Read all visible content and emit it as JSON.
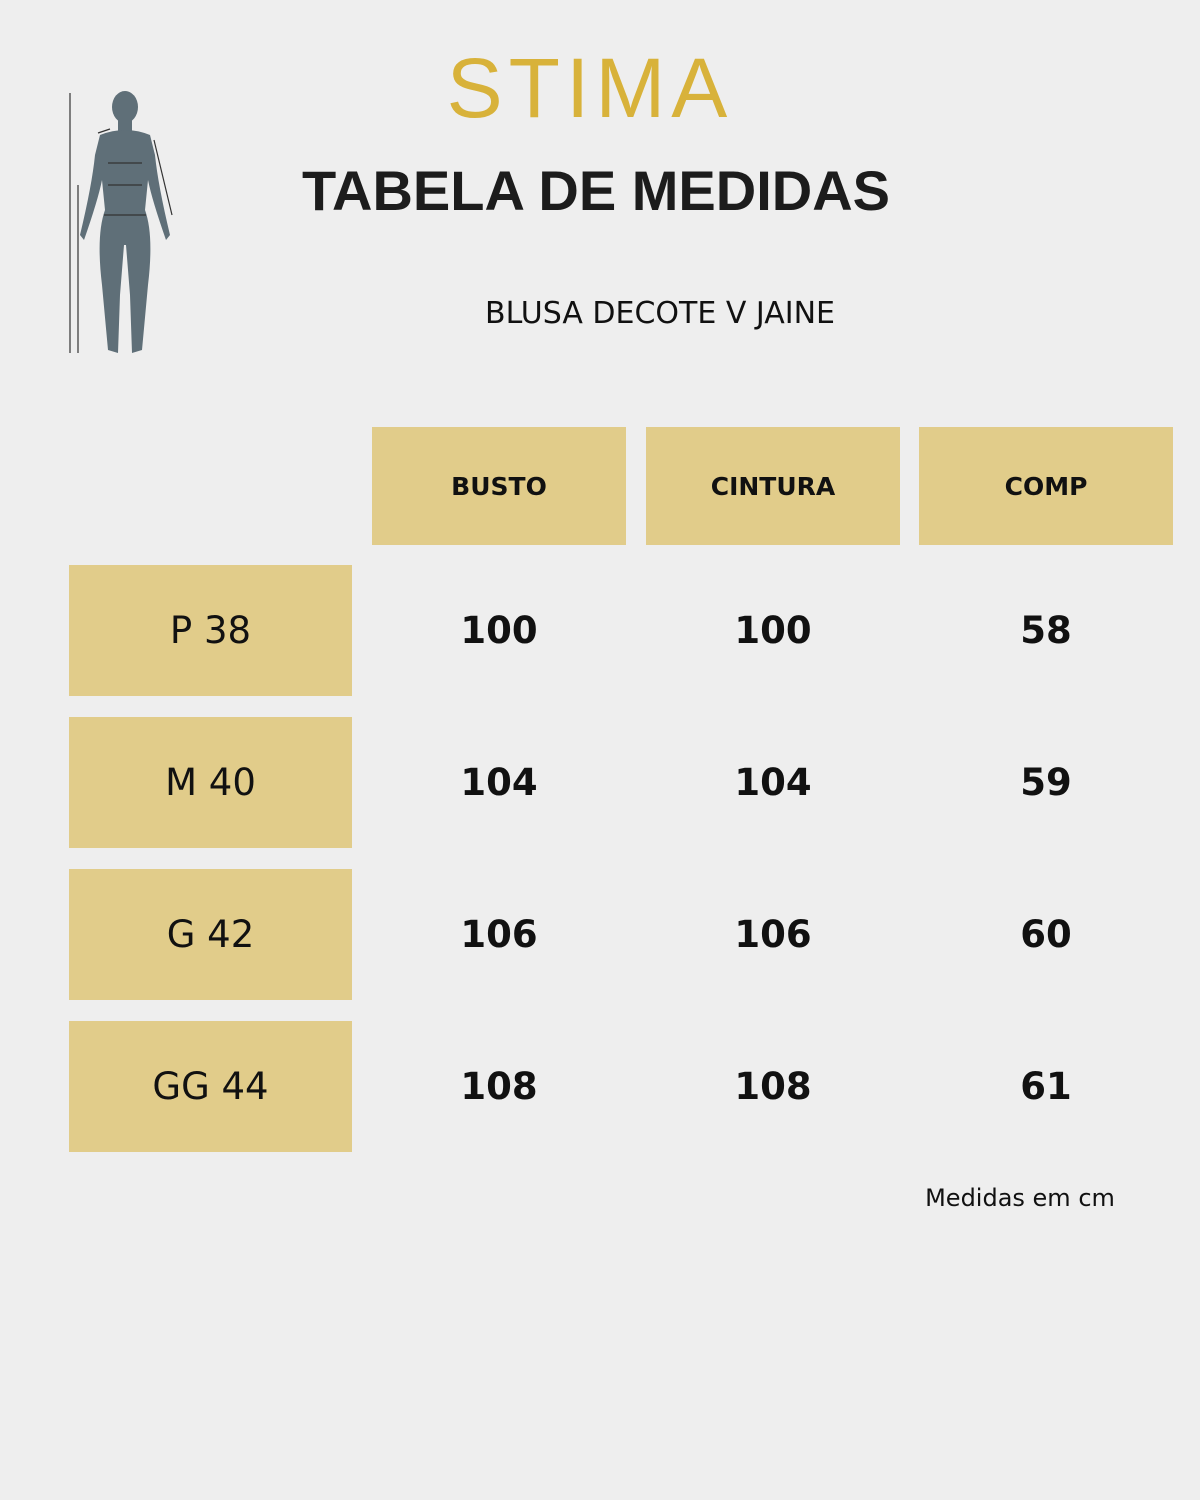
{
  "header": {
    "brand": "STIMA",
    "title": "TABELA DE MEDIDAS",
    "subtitle": "BLUSA DECOTE V JAINE"
  },
  "table": {
    "columns": [
      "BUSTO",
      "CINTURA",
      "COMP"
    ],
    "rows": [
      {
        "size": "P 38",
        "values": [
          100,
          100,
          58
        ]
      },
      {
        "size": "M 40",
        "values": [
          104,
          104,
          59
        ]
      },
      {
        "size": "G 42",
        "values": [
          106,
          106,
          60
        ]
      },
      {
        "size": "GG 44",
        "values": [
          108,
          108,
          61
        ]
      }
    ]
  },
  "footnote": "Medidas em cm"
}
